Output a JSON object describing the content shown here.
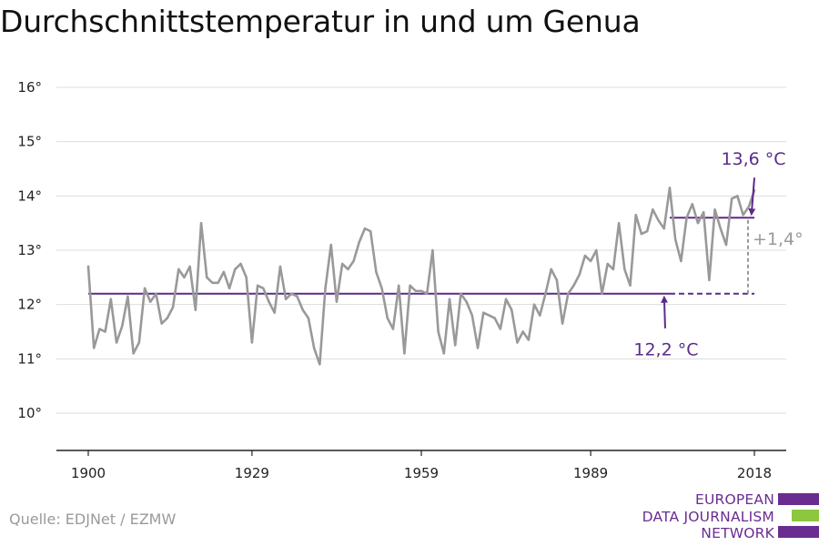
{
  "title": "Durchschnittstemperatur in und um Genua",
  "source": "Quelle: EDJNet / EZMW",
  "logo": {
    "lines": [
      "EUROPEAN",
      "DATA JOURNALISM",
      "NETWORK"
    ],
    "colors": [
      "#6a2c91",
      "#8dc63f",
      "#6a2c91"
    ]
  },
  "colors": {
    "series": "#999999",
    "reference": "#5b2a8a",
    "delta": "#999999",
    "grid": "#dddddd",
    "axis": "#222222"
  },
  "chart_data": {
    "type": "line",
    "title": "Durchschnittstemperatur in und um Genua",
    "xlabel": "",
    "ylabel": "",
    "xlim": [
      1900,
      2018
    ],
    "ylim": [
      10,
      16
    ],
    "x_ticks": [
      1900,
      1929,
      1959,
      1989,
      2018
    ],
    "x_tick_labels": [
      "1900",
      "1929",
      "1959",
      "1989",
      "2018"
    ],
    "y_ticks": [
      10,
      11,
      12,
      13,
      14,
      15,
      16
    ],
    "y_tick_labels": [
      "10°",
      "11°",
      "12°",
      "13°",
      "14°",
      "15°",
      "16°"
    ],
    "grid": true,
    "series": [
      {
        "x_start": 1900,
        "x_step": 1,
        "values": [
          12.7,
          11.2,
          11.55,
          11.5,
          12.1,
          11.3,
          11.6,
          12.15,
          11.1,
          11.3,
          12.3,
          12.05,
          12.2,
          11.65,
          11.75,
          11.95,
          12.65,
          12.5,
          12.7,
          11.9,
          13.5,
          12.5,
          12.4,
          12.4,
          12.6,
          12.3,
          12.65,
          12.75,
          12.5,
          11.3,
          12.35,
          12.3,
          12.05,
          11.85,
          12.7,
          12.1,
          12.2,
          12.15,
          11.9,
          11.75,
          11.2,
          10.9,
          12.3,
          13.1,
          12.05,
          12.75,
          12.65,
          12.8,
          13.15,
          13.4,
          13.35,
          12.6,
          12.3,
          11.75,
          11.55,
          12.35,
          11.1,
          12.35,
          12.25,
          12.25,
          12.2,
          13.0,
          11.5,
          11.1,
          12.1,
          11.25,
          12.2,
          12.05,
          11.8,
          11.2,
          11.85,
          11.8,
          11.75,
          11.55,
          12.1,
          11.9,
          11.3,
          11.5,
          11.35,
          12.0,
          11.8,
          12.2,
          12.65,
          12.45,
          11.65,
          12.2,
          12.35,
          12.55,
          12.9,
          12.8,
          13.0,
          12.2,
          12.75,
          12.65,
          13.5,
          12.65,
          12.35,
          13.65,
          13.3,
          13.35,
          13.75,
          13.55,
          13.4,
          14.15,
          13.2,
          12.8,
          13.6,
          13.85,
          13.5,
          13.7,
          12.45,
          13.75,
          13.4,
          13.1,
          13.95,
          14.0,
          13.65,
          13.8,
          14.1
        ]
      }
    ],
    "reference_lines": [
      {
        "y": 12.2,
        "x_from": 1900,
        "x_to": 2003,
        "style": "solid",
        "label": "12,2 °C"
      },
      {
        "y": 12.2,
        "x_from": 2003,
        "x_to": 2018,
        "style": "dashed"
      },
      {
        "y": 13.6,
        "x_from": 2003,
        "x_to": 2018,
        "style": "solid",
        "label": "13,6 °C"
      }
    ],
    "difference": {
      "x": 2018,
      "from": 12.2,
      "to": 13.6,
      "label": "+1,4°"
    }
  }
}
